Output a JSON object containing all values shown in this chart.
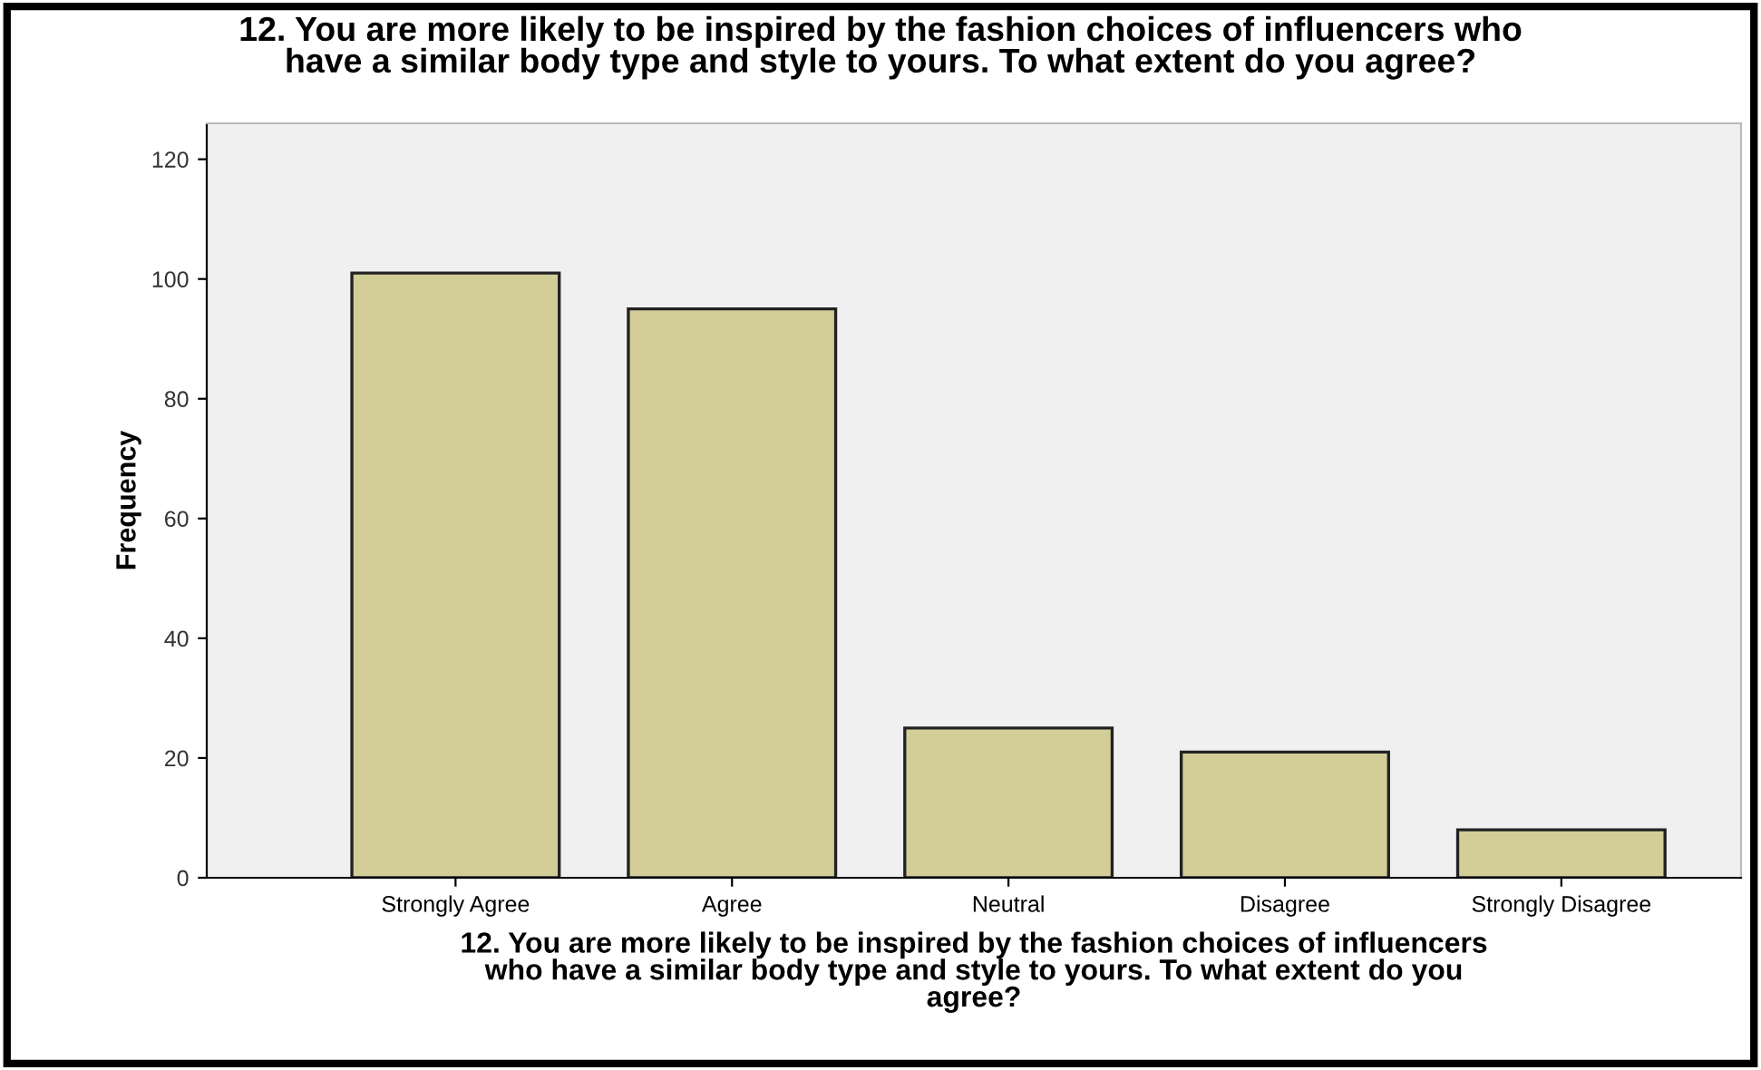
{
  "chart_data": {
    "type": "bar",
    "title": "12. You are more likely to be inspired by the fashion choices of influencers who\nhave a similar body type and style to yours. To what extent do you agree?",
    "xlabel": "12. You are more likely to be inspired by the fashion choices of influencers\nwho have a similar body type and style to yours. To what extent do you\nagree?",
    "ylabel": "Frequency",
    "categories": [
      "Strongly Agree",
      "Agree",
      "Neutral",
      "Disagree",
      "Strongly Disagree"
    ],
    "values": [
      101,
      95,
      25,
      21,
      8
    ],
    "color": "#d3ce98",
    "ylim": [
      0,
      126
    ],
    "yticks": [
      0,
      20,
      40,
      60,
      80,
      100,
      120
    ],
    "grid": false
  }
}
